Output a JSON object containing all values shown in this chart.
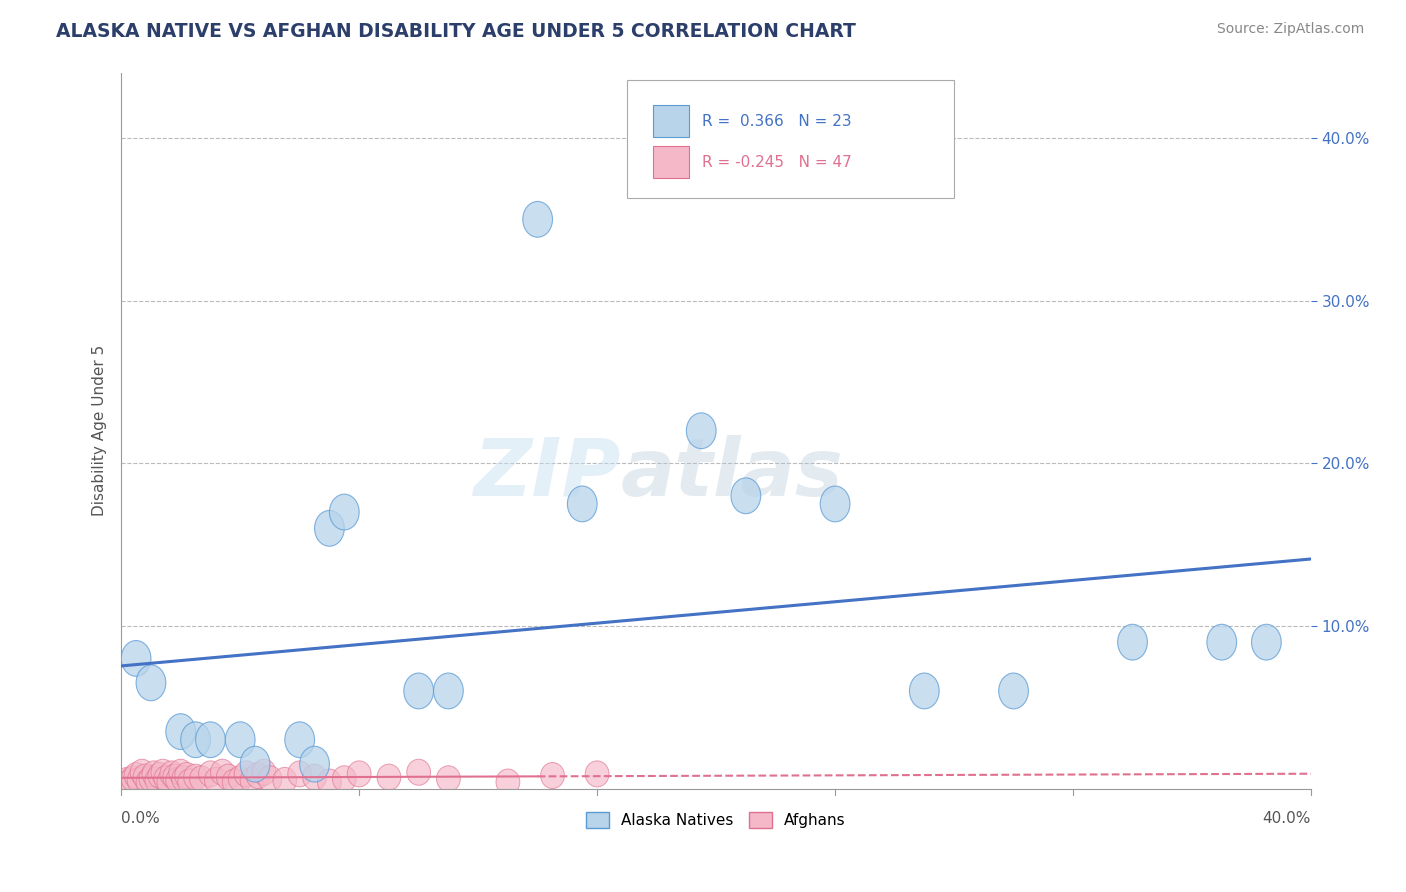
{
  "title": "ALASKA NATIVE VS AFGHAN DISABILITY AGE UNDER 5 CORRELATION CHART",
  "source": "Source: ZipAtlas.com",
  "ylabel": "Disability Age Under 5",
  "xlim": [
    0.0,
    0.4
  ],
  "ylim": [
    0.0,
    0.44
  ],
  "alaska_R": 0.366,
  "alaska_N": 23,
  "afghan_R": -0.245,
  "afghan_N": 47,
  "alaska_color": "#b8d4ea",
  "alaska_edge_color": "#5b9bd5",
  "alaska_line_color": "#4472c4",
  "afghan_color": "#f4b8c8",
  "afghan_edge_color": "#e07090",
  "afghan_line_color": "#e07090",
  "background_color": "#ffffff",
  "grid_color": "#bbbbbb",
  "watermark_text": "ZIPatlas",
  "alaska_x": [
    0.005,
    0.01,
    0.02,
    0.025,
    0.03,
    0.04,
    0.045,
    0.06,
    0.065,
    0.07,
    0.075,
    0.1,
    0.11,
    0.14,
    0.155,
    0.195,
    0.21,
    0.24,
    0.27,
    0.3,
    0.34,
    0.37,
    0.385
  ],
  "alaska_y": [
    0.08,
    0.065,
    0.035,
    0.03,
    0.03,
    0.03,
    0.015,
    0.03,
    0.015,
    0.16,
    0.17,
    0.06,
    0.06,
    0.35,
    0.175,
    0.22,
    0.18,
    0.175,
    0.06,
    0.06,
    0.09,
    0.09,
    0.09
  ],
  "afghan_x": [
    0.002,
    0.003,
    0.004,
    0.005,
    0.006,
    0.007,
    0.008,
    0.009,
    0.01,
    0.011,
    0.012,
    0.013,
    0.014,
    0.015,
    0.016,
    0.017,
    0.018,
    0.019,
    0.02,
    0.021,
    0.022,
    0.023,
    0.025,
    0.027,
    0.03,
    0.032,
    0.034,
    0.036,
    0.038,
    0.04,
    0.042,
    0.044,
    0.046,
    0.048,
    0.05,
    0.055,
    0.06,
    0.065,
    0.07,
    0.075,
    0.08,
    0.09,
    0.1,
    0.11,
    0.13,
    0.145,
    0.16
  ],
  "afghan_y": [
    0.005,
    0.004,
    0.006,
    0.008,
    0.005,
    0.01,
    0.007,
    0.004,
    0.006,
    0.009,
    0.005,
    0.008,
    0.01,
    0.006,
    0.004,
    0.009,
    0.007,
    0.005,
    0.01,
    0.006,
    0.008,
    0.004,
    0.007,
    0.006,
    0.009,
    0.005,
    0.01,
    0.007,
    0.004,
    0.006,
    0.009,
    0.005,
    0.008,
    0.01,
    0.006,
    0.005,
    0.009,
    0.007,
    0.004,
    0.006,
    0.009,
    0.007,
    0.01,
    0.006,
    0.004,
    0.008,
    0.009
  ],
  "legend_r1_text": "R =  0.366   N = 23",
  "legend_r2_text": "R = -0.245   N = 47",
  "legend_box_color": "#ffffff",
  "legend_border_color": "#aaaaaa",
  "title_color": "#2c3e6a",
  "source_color": "#888888",
  "axis_label_color": "#555555",
  "ytick_color": "#4472c4",
  "tick_label_color": "#555555"
}
